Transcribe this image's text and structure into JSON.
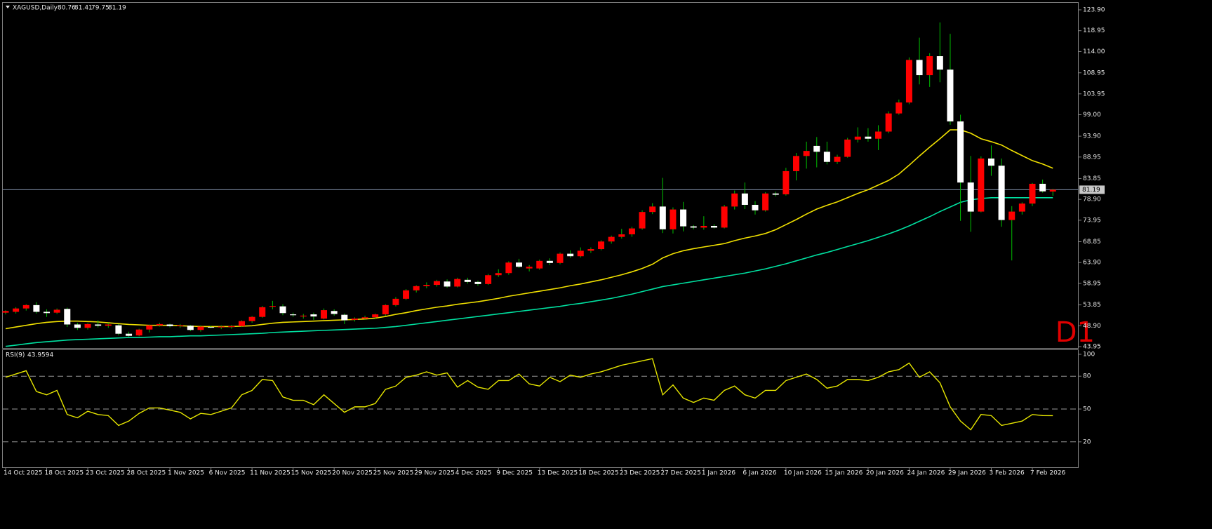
{
  "chart_data": [
    {
      "type": "candlestick",
      "title": "XAGUSD,Daily",
      "timeframe_label": "D1",
      "categories": [
        "14 Oct 2025",
        null,
        null,
        null,
        "18 Oct 2025",
        null,
        null,
        null,
        "23 Oct 2025",
        null,
        null,
        null,
        "28 Oct 2025",
        null,
        null,
        null,
        "1 Nov 2025",
        null,
        null,
        null,
        "6 Nov 2025",
        null,
        null,
        null,
        "11 Nov 2025",
        null,
        null,
        null,
        "15 Nov 2025",
        null,
        null,
        null,
        "20 Nov 2025",
        null,
        null,
        null,
        "25 Nov 2025",
        null,
        null,
        null,
        "29 Nov 2025",
        null,
        null,
        null,
        "4 Dec 2025",
        null,
        null,
        null,
        "9 Dec 2025",
        null,
        null,
        null,
        "13 Dec 2025",
        null,
        null,
        null,
        "18 Dec 2025",
        null,
        null,
        null,
        "23 Dec 2025",
        null,
        null,
        null,
        "27 Dec 2025",
        null,
        null,
        null,
        "1 Jan 2026",
        null,
        null,
        null,
        "6 Jan 2026",
        null,
        null,
        null,
        "10 Jan 2026",
        null,
        null,
        null,
        "15 Jan 2026",
        null,
        null,
        null,
        "20 Jan 2026",
        null,
        null,
        null,
        "24 Jan 2026",
        null,
        null,
        null,
        "29 Jan 2026",
        null,
        null,
        null,
        "3 Feb 2026",
        null,
        null,
        null,
        "7 Feb 2026",
        null,
        null
      ],
      "open": [
        52.0,
        52.2,
        53.0,
        53.8,
        52.2,
        52.0,
        52.9,
        49.2,
        48.4,
        49.2,
        48.9,
        49.0,
        47.0,
        46.6,
        48.0,
        49.0,
        49.2,
        48.8,
        48.9,
        47.9,
        48.6,
        48.5,
        48.6,
        48.8,
        50.0,
        51.0,
        53.4,
        53.5,
        51.6,
        51.1,
        51.6,
        50.6,
        52.4,
        51.5,
        50.3,
        50.6,
        50.9,
        51.6,
        53.8,
        55.3,
        57.3,
        58.3,
        58.6,
        59.4,
        58.2,
        59.8,
        59.3,
        58.8,
        60.9,
        61.4,
        63.9,
        62.5,
        62.5,
        64.3,
        63.8,
        66.0,
        65.4,
        66.7,
        67.1,
        68.9,
        70.0,
        70.6,
        72.0,
        75.9,
        77.2,
        71.8,
        76.5,
        72.5,
        72.2,
        72.6,
        72.2,
        77.2,
        80.3,
        77.6,
        76.3,
        80.3,
        80.1,
        85.6,
        89.2,
        91.6,
        90.2,
        87.8,
        89.0,
        93.1,
        93.8,
        93.3,
        95.0,
        99.3,
        101.9,
        112.0,
        108.4,
        112.9,
        109.7,
        97.4,
        82.9,
        76.0,
        88.6,
        86.9,
        74.0,
        76.0,
        77.9,
        82.6,
        80.76
      ],
      "high": [
        52.6,
        53.3,
        54.0,
        54.5,
        52.8,
        53.0,
        53.2,
        49.6,
        49.5,
        50.2,
        49.6,
        49.3,
        47.5,
        48.2,
        49.2,
        49.6,
        49.4,
        49.3,
        49.1,
        49.0,
        48.9,
        49.0,
        49.1,
        50.2,
        51.2,
        53.6,
        54.8,
        54.0,
        52.0,
        51.7,
        52.0,
        53.0,
        52.8,
        51.8,
        50.9,
        51.3,
        51.8,
        54.0,
        55.7,
        57.6,
        58.5,
        59.2,
        59.8,
        59.9,
        60.3,
        60.3,
        59.6,
        61.2,
        62.3,
        64.2,
        64.8,
        63.3,
        64.6,
        64.9,
        66.3,
        66.8,
        67.5,
        67.5,
        69.2,
        70.3,
        71.9,
        72.4,
        76.3,
        78.0,
        84.0,
        77.0,
        78.3,
        72.8,
        74.9,
        73.0,
        77.6,
        81.0,
        82.9,
        78.5,
        80.6,
        80.7,
        86.4,
        89.9,
        92.6,
        93.7,
        92.6,
        89.5,
        93.5,
        96.0,
        95.8,
        96.5,
        99.8,
        102.6,
        112.6,
        117.3,
        113.6,
        120.9,
        118.2,
        99.0,
        89.2,
        89.1,
        91.7,
        88.6,
        77.3,
        78.2,
        82.8,
        83.6,
        81.41
      ],
      "low": [
        51.6,
        51.8,
        52.5,
        51.8,
        51.0,
        51.7,
        48.6,
        47.9,
        48.0,
        48.5,
        48.4,
        46.6,
        46.3,
        46.4,
        47.3,
        48.7,
        48.5,
        48.4,
        47.6,
        47.5,
        48.3,
        48.1,
        48.2,
        48.6,
        49.6,
        50.8,
        52.8,
        51.4,
        51.0,
        50.6,
        50.3,
        50.4,
        51.3,
        49.3,
        49.9,
        50.3,
        50.5,
        51.3,
        53.5,
        55.0,
        56.8,
        57.8,
        58.2,
        57.9,
        58.0,
        58.9,
        58.4,
        58.6,
        60.5,
        61.0,
        62.6,
        61.8,
        62.2,
        63.3,
        63.5,
        65.0,
        65.1,
        66.2,
        66.8,
        68.4,
        69.6,
        70.0,
        71.7,
        75.4,
        70.9,
        70.8,
        71.3,
        71.8,
        71.7,
        72.0,
        72.0,
        76.5,
        76.6,
        75.3,
        76.0,
        79.6,
        79.8,
        83.4,
        86.2,
        86.5,
        87.2,
        87.3,
        88.8,
        92.4,
        92.6,
        90.6,
        94.6,
        99.0,
        101.5,
        106.2,
        105.6,
        106.7,
        96.6,
        73.8,
        71.2,
        75.8,
        84.5,
        72.4,
        64.4,
        75.3,
        77.3,
        80.5,
        79.75
      ],
      "close": [
        52.4,
        53.0,
        53.8,
        52.2,
        51.9,
        52.7,
        49.2,
        48.4,
        49.3,
        48.9,
        49.2,
        47.0,
        46.5,
        48.0,
        49.0,
        49.3,
        48.8,
        49.0,
        47.9,
        48.7,
        48.5,
        48.7,
        48.8,
        50.0,
        51.0,
        53.3,
        53.6,
        51.9,
        51.4,
        51.3,
        51.1,
        52.6,
        51.7,
        50.2,
        50.6,
        50.9,
        51.6,
        53.8,
        55.3,
        57.3,
        58.3,
        58.6,
        59.5,
        58.2,
        60.0,
        59.3,
        58.8,
        60.9,
        61.4,
        63.9,
        62.9,
        62.9,
        64.3,
        63.8,
        66.0,
        65.4,
        66.7,
        67.1,
        68.9,
        70.0,
        70.6,
        72.0,
        75.9,
        77.2,
        71.8,
        76.5,
        72.5,
        72.2,
        72.6,
        72.2,
        77.2,
        80.3,
        77.6,
        76.3,
        80.3,
        80.0,
        85.6,
        89.2,
        90.4,
        90.2,
        87.8,
        89.0,
        93.1,
        93.8,
        93.3,
        95.0,
        99.3,
        101.9,
        112.0,
        108.4,
        112.9,
        109.7,
        97.4,
        82.9,
        76.0,
        88.6,
        86.9,
        74.0,
        76.0,
        77.9,
        82.6,
        80.8,
        81.19
      ],
      "up_color": "#ff0000",
      "down_color": "#ffffff",
      "wick_color": "#00c000",
      "moving_averages": [
        {
          "color": "#f0e000",
          "values": [
            48.2,
            48.6,
            49.0,
            49.4,
            49.7,
            49.9,
            50.0,
            50.0,
            49.9,
            49.8,
            49.6,
            49.4,
            49.2,
            49.1,
            49.0,
            49.0,
            49.0,
            48.9,
            48.8,
            48.7,
            48.7,
            48.7,
            48.7,
            48.8,
            48.9,
            49.2,
            49.5,
            49.7,
            49.8,
            49.9,
            50.0,
            50.1,
            50.2,
            50.3,
            50.4,
            50.5,
            50.7,
            51.1,
            51.6,
            52.0,
            52.5,
            52.9,
            53.3,
            53.6,
            54.0,
            54.3,
            54.6,
            55.0,
            55.4,
            55.9,
            56.3,
            56.7,
            57.1,
            57.5,
            57.9,
            58.4,
            58.8,
            59.3,
            59.8,
            60.4,
            61.0,
            61.7,
            62.5,
            63.5,
            65.0,
            66.0,
            66.7,
            67.2,
            67.6,
            68.0,
            68.4,
            69.1,
            69.7,
            70.2,
            70.8,
            71.7,
            72.9,
            74.1,
            75.4,
            76.6,
            77.5,
            78.3,
            79.3,
            80.3,
            81.2,
            82.3,
            83.4,
            84.9,
            87.0,
            89.2,
            91.3,
            93.3,
            95.4,
            95.4,
            94.6,
            93.3,
            92.6,
            91.8,
            90.5,
            89.3,
            88.1,
            87.3,
            86.3
          ]
        },
        {
          "color": "#00e0a0",
          "values": [
            44.0,
            44.3,
            44.6,
            44.9,
            45.1,
            45.3,
            45.5,
            45.6,
            45.7,
            45.8,
            45.9,
            46.0,
            46.1,
            46.1,
            46.2,
            46.3,
            46.3,
            46.4,
            46.5,
            46.5,
            46.6,
            46.7,
            46.8,
            46.9,
            47.0,
            47.1,
            47.3,
            47.4,
            47.5,
            47.6,
            47.7,
            47.8,
            47.9,
            48.0,
            48.1,
            48.2,
            48.3,
            48.5,
            48.7,
            49.0,
            49.3,
            49.6,
            49.9,
            50.2,
            50.5,
            50.8,
            51.1,
            51.4,
            51.7,
            52.0,
            52.3,
            52.6,
            52.9,
            53.2,
            53.5,
            53.9,
            54.2,
            54.6,
            55.0,
            55.4,
            55.9,
            56.4,
            57.0,
            57.6,
            58.2,
            58.6,
            59.0,
            59.4,
            59.8,
            60.2,
            60.6,
            61.0,
            61.4,
            61.9,
            62.4,
            63.0,
            63.6,
            64.3,
            65.0,
            65.7,
            66.3,
            67.0,
            67.7,
            68.4,
            69.1,
            69.9,
            70.7,
            71.6,
            72.6,
            73.7,
            74.8,
            76.0,
            77.1,
            78.2,
            78.8,
            79.1,
            79.3,
            79.3,
            79.3,
            79.3,
            79.3,
            79.3,
            79.3
          ]
        }
      ],
      "current_price": 81.19,
      "price_line_color": "#8090a8",
      "ylim": [
        43.45,
        124.9
      ],
      "yticks": [
        {
          "value": 123.9,
          "label": "123.90"
        },
        {
          "value": 118.95,
          "label": "118.95"
        },
        {
          "value": 114,
          "label": "114.00"
        },
        {
          "value": 108.95,
          "label": "108.95"
        },
        {
          "value": 103.95,
          "label": "103.95"
        },
        {
          "value": 99,
          "label": "99.00"
        },
        {
          "value": 93.9,
          "label": "93.90"
        },
        {
          "value": 88.95,
          "label": "88.95"
        },
        {
          "value": 83.85,
          "label": "83.85"
        },
        {
          "value": 78.9,
          "label": "78.90"
        },
        {
          "value": 73.95,
          "label": "73.95"
        },
        {
          "value": 68.85,
          "label": "68.85"
        },
        {
          "value": 63.9,
          "label": "63.90"
        },
        {
          "value": 58.95,
          "label": "58.95"
        },
        {
          "value": 53.85,
          "label": "53.85"
        },
        {
          "value": 48.9,
          "label": "48.90"
        },
        {
          "value": 43.95,
          "label": "43.95"
        }
      ]
    },
    {
      "type": "line",
      "title": "RSI(9)",
      "color": "#e6e600",
      "values": [
        79,
        82,
        85,
        66,
        63,
        67,
        45,
        42,
        48,
        45,
        44,
        35,
        39,
        46,
        51,
        51,
        49,
        47,
        41,
        46,
        45,
        48,
        51,
        63,
        67,
        77,
        76,
        61,
        58,
        58,
        54,
        63,
        55,
        47,
        52,
        52,
        55,
        68,
        71,
        79,
        81,
        84,
        81,
        83,
        70,
        76,
        70,
        68,
        76,
        76,
        82,
        73,
        71,
        79,
        75,
        81,
        79,
        82,
        84,
        87,
        90,
        92,
        94,
        96,
        63,
        72,
        60,
        56,
        60,
        58,
        67,
        71,
        63,
        60,
        67,
        67,
        76,
        79,
        82,
        77,
        69,
        71,
        77,
        77,
        76,
        79,
        84,
        86,
        92,
        79,
        84,
        74,
        52,
        39,
        31,
        45,
        44,
        35,
        37,
        39,
        45,
        44,
        43.9594
      ],
      "ylim": [
        0,
        100
      ],
      "yticks": [
        100,
        80,
        50,
        20
      ],
      "dashed_levels": true
    }
  ]
}
